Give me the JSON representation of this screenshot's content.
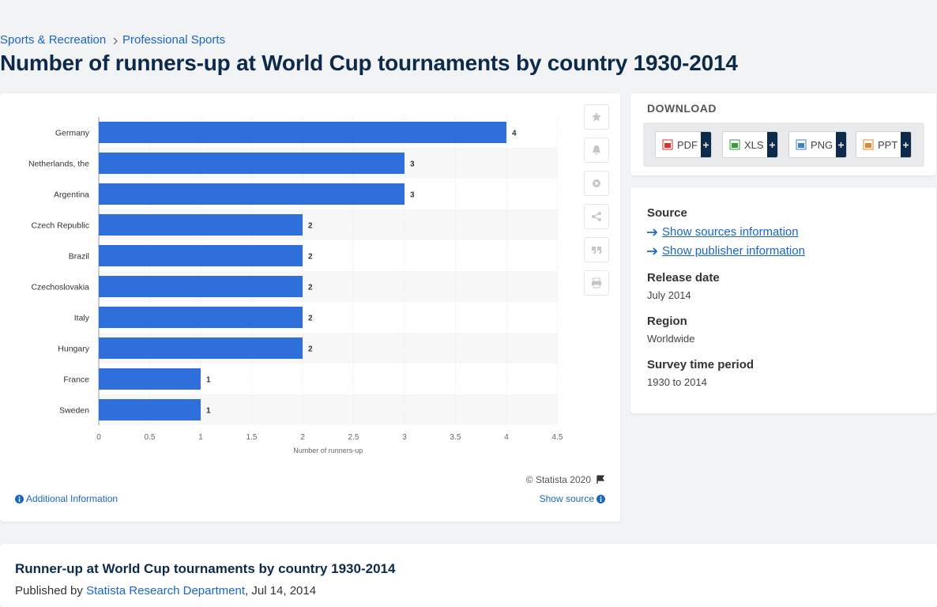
{
  "breadcrumb": [
    "Sports & Recreation",
    "Professional Sports"
  ],
  "title": "Number of runners-up at World Cup tournaments by country 1930-2014",
  "chart_data": {
    "type": "hbar",
    "categories": [
      "Germany",
      "Netherlands, the",
      "Argentina",
      "Czech Republic",
      "Brazil",
      "Czechoslovakia",
      "Italy",
      "Hungary",
      "France",
      "Sweden"
    ],
    "values": [
      4,
      3,
      3,
      2,
      2,
      2,
      2,
      2,
      1,
      1
    ],
    "color": "#2f6fdb",
    "xlabel": "Number of runners-up",
    "xlim": [
      0,
      4.5
    ],
    "xticks": [
      0,
      0.5,
      1,
      1.5,
      2,
      2.5,
      3,
      3.5,
      4,
      4.5
    ],
    "grid": true
  },
  "chart_footer": {
    "copyright": "© Statista 2020",
    "additional_info": "Additional Information",
    "show_source": "Show source"
  },
  "download": {
    "title": "DOWNLOAD",
    "formats": [
      "PDF",
      "XLS",
      "PNG",
      "PPT"
    ]
  },
  "details": {
    "source_label": "Source",
    "source_links": [
      "Show sources information",
      "Show publisher information"
    ],
    "release_label": "Release date",
    "release_value": "July 2014",
    "region_label": "Region",
    "region_value": "Worldwide",
    "period_label": "Survey time period",
    "period_value": "1930 to 2014"
  },
  "footer": {
    "title": "Runner-up at World Cup tournaments by country 1930-2014",
    "published_prefix": "Published by",
    "publisher": "Statista Research Department",
    "date": ", Jul 14, 2014"
  }
}
